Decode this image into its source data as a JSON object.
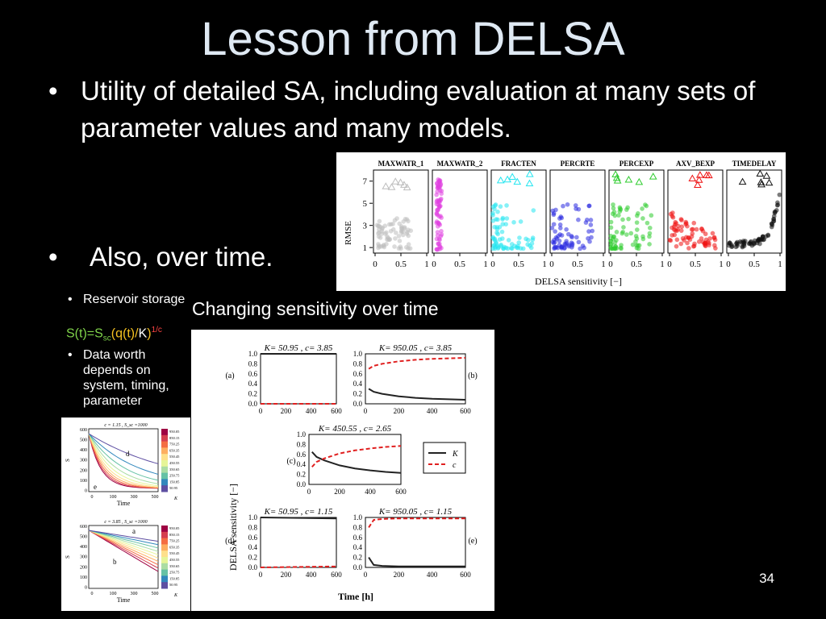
{
  "slide": {
    "title": "Lesson from DELSA",
    "bullet1": "Utility of detailed SA, including evaluation at many sets of parameter values and many models.",
    "bullet2": "Also, over time.",
    "bullet_symbol": "•",
    "sub_bullet1": "Reservoir storage",
    "equation": {
      "s": "S(t)=S",
      "sc": "sc",
      "mid": "(q(t)/",
      "k": "K",
      "close": ")",
      "exp": "1/c"
    },
    "sub_bullet2": "Data worth depends on system, timing, parameter",
    "figure_caption": "Changing sensitivity over time",
    "page_number": "34"
  },
  "scatter_figure": {
    "panels": [
      "MAXWATR_1",
      "MAXWATR_2",
      "FRACTEN",
      "PERCRTE",
      "PERCEXP",
      "AXV_BEXP",
      "TIMEDELAY"
    ],
    "colors": [
      "#bdbdbd",
      "#e040e0",
      "#22e5f0",
      "#2a2ae0",
      "#2ecc2e",
      "#ee1111",
      "#111111"
    ],
    "ylabel": "RMSE",
    "xlabel": "DELSA sensitivity [−]",
    "yticks": [
      "1",
      "3",
      "5",
      "7"
    ],
    "xticks": [
      "0",
      "0.5",
      "1"
    ]
  },
  "storage_figure": {
    "top_title": "c = 1.15 , S_sc =1000",
    "bottom_title": "c = 3.85 , S_sc =1000",
    "xlabel": "Time",
    "ylabel": "S",
    "yticks": [
      "600",
      "500",
      "400",
      "300",
      "200",
      "100",
      "0"
    ],
    "xticks": [
      "0",
      "100",
      "300",
      "500"
    ],
    "colorbar_labels": [
      "950.05",
      "850.15",
      "750.25",
      "650.35",
      "550.45",
      "450.55",
      "350.65",
      "250.75",
      "150.85",
      "50.95"
    ],
    "colorbar_title": "K",
    "labels": {
      "d": "d",
      "e": "e",
      "a": "a",
      "b": "b"
    }
  },
  "chart_data": [
    {
      "type": "line",
      "panel": "(a)",
      "title": "K= 50.95 ,  c= 3.85",
      "x": [
        0,
        600
      ],
      "series": [
        {
          "name": "K",
          "values": [
            1.0,
            1.0
          ]
        },
        {
          "name": "c",
          "values": [
            0.0,
            0.0
          ]
        }
      ],
      "ylim": [
        0,
        1.0
      ],
      "xticks": [
        "0",
        "200",
        "400",
        "600"
      ]
    },
    {
      "type": "line",
      "panel": "(b)",
      "title": "K= 950.05 ,  c= 3.85",
      "x": [
        20,
        50,
        100,
        200,
        300,
        400,
        500,
        600
      ],
      "series": [
        {
          "name": "K",
          "values": [
            0.3,
            0.24,
            0.2,
            0.15,
            0.12,
            0.1,
            0.09,
            0.08
          ]
        },
        {
          "name": "c",
          "values": [
            0.7,
            0.76,
            0.8,
            0.85,
            0.88,
            0.9,
            0.91,
            0.92
          ]
        }
      ],
      "ylim": [
        0,
        1.0
      ],
      "xticks": [
        "0",
        "200",
        "400",
        "600"
      ]
    },
    {
      "type": "line",
      "panel": "(c)",
      "title": "K= 450.55 ,  c= 2.65",
      "x": [
        20,
        50,
        100,
        200,
        300,
        400,
        500,
        600
      ],
      "series": [
        {
          "name": "K",
          "values": [
            0.65,
            0.55,
            0.48,
            0.38,
            0.32,
            0.28,
            0.25,
            0.23
          ]
        },
        {
          "name": "c",
          "values": [
            0.35,
            0.45,
            0.52,
            0.62,
            0.68,
            0.72,
            0.75,
            0.77
          ]
        }
      ],
      "ylim": [
        0,
        1.0
      ],
      "xticks": [
        "0",
        "200",
        "400",
        "600"
      ],
      "legend": [
        "K",
        "c"
      ]
    },
    {
      "type": "line",
      "panel": "(d)",
      "title": "K= 50.95 ,  c= 1.15",
      "x": [
        0,
        600
      ],
      "series": [
        {
          "name": "K",
          "values": [
            1.0,
            0.98
          ]
        },
        {
          "name": "c",
          "values": [
            0.0,
            0.02
          ]
        }
      ],
      "ylim": [
        0,
        1.0
      ],
      "xticks": [
        "0",
        "200",
        "400",
        "600"
      ]
    },
    {
      "type": "line",
      "panel": "(e)",
      "title": "K= 950.05 ,  c= 1.15",
      "x": [
        20,
        50,
        100,
        200,
        300,
        400,
        500,
        600
      ],
      "series": [
        {
          "name": "K",
          "values": [
            0.2,
            0.05,
            0.03,
            0.02,
            0.02,
            0.02,
            0.02,
            0.02
          ]
        },
        {
          "name": "c",
          "values": [
            0.8,
            0.95,
            0.97,
            0.98,
            0.98,
            0.98,
            0.98,
            0.98
          ]
        }
      ],
      "ylim": [
        0,
        1.0
      ],
      "xticks": [
        "0",
        "200",
        "400",
        "600"
      ]
    }
  ],
  "sens_figure": {
    "ylabel": "DELSA sensitivity [−]",
    "xlabel": "Time [h]",
    "yticks": [
      "1.0",
      "0.8",
      "0.6",
      "0.4",
      "0.2",
      "0.0"
    ]
  }
}
